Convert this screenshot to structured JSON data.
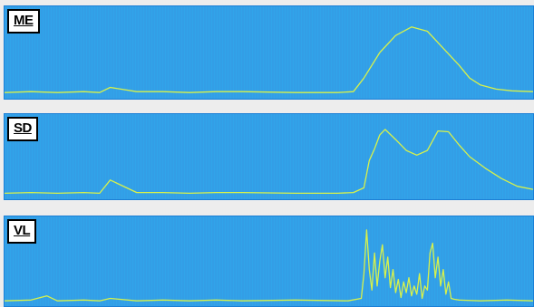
{
  "chart_data": [
    {
      "type": "line",
      "title": "ME",
      "series": [
        {
          "x": [
            0,
            0.05,
            0.1,
            0.15,
            0.18,
            0.2,
            0.25,
            0.3,
            0.35,
            0.4,
            0.45,
            0.55,
            0.63,
            0.66,
            0.68,
            0.71,
            0.74,
            0.77,
            0.8,
            0.83,
            0.86,
            0.88,
            0.9,
            0.93,
            0.96,
            1.0
          ],
          "y": [
            0.03,
            0.04,
            0.03,
            0.04,
            0.03,
            0.09,
            0.04,
            0.04,
            0.03,
            0.04,
            0.04,
            0.03,
            0.03,
            0.04,
            0.2,
            0.5,
            0.7,
            0.8,
            0.75,
            0.55,
            0.35,
            0.2,
            0.12,
            0.07,
            0.05,
            0.04
          ]
        }
      ],
      "ylim": [
        0,
        1
      ],
      "colors": {
        "background": "#31a4ea",
        "trace": "#d8f24a",
        "grid": "#3a8fdc"
      }
    },
    {
      "type": "line",
      "title": "SD",
      "series": [
        {
          "x": [
            0,
            0.05,
            0.1,
            0.15,
            0.18,
            0.2,
            0.25,
            0.3,
            0.35,
            0.4,
            0.45,
            0.55,
            0.63,
            0.66,
            0.68,
            0.69,
            0.7,
            0.71,
            0.72,
            0.74,
            0.76,
            0.78,
            0.8,
            0.82,
            0.84,
            0.86,
            0.88,
            0.91,
            0.94,
            0.97,
            1.0
          ],
          "y": [
            0.03,
            0.04,
            0.03,
            0.04,
            0.03,
            0.2,
            0.04,
            0.04,
            0.03,
            0.04,
            0.04,
            0.03,
            0.03,
            0.04,
            0.1,
            0.45,
            0.6,
            0.78,
            0.85,
            0.72,
            0.58,
            0.52,
            0.58,
            0.83,
            0.82,
            0.65,
            0.5,
            0.35,
            0.22,
            0.12,
            0.08
          ]
        }
      ],
      "ylim": [
        0,
        1
      ],
      "colors": {
        "background": "#31a4ea",
        "trace": "#d8f24a",
        "grid": "#3a8fdc"
      }
    },
    {
      "type": "line",
      "title": "VL",
      "series": [
        {
          "x": [
            0,
            0.05,
            0.08,
            0.1,
            0.15,
            0.18,
            0.2,
            0.25,
            0.3,
            0.35,
            0.4,
            0.45,
            0.55,
            0.65,
            0.675,
            0.68,
            0.685,
            0.69,
            0.695,
            0.7,
            0.705,
            0.71,
            0.715,
            0.72,
            0.725,
            0.73,
            0.735,
            0.74,
            0.745,
            0.75,
            0.755,
            0.76,
            0.765,
            0.77,
            0.775,
            0.78,
            0.785,
            0.79,
            0.795,
            0.8,
            0.805,
            0.81,
            0.815,
            0.82,
            0.825,
            0.83,
            0.835,
            0.84,
            0.845,
            0.85,
            0.86,
            0.9,
            0.95,
            1.0
          ],
          "y": [
            0.02,
            0.03,
            0.08,
            0.02,
            0.03,
            0.02,
            0.05,
            0.02,
            0.03,
            0.02,
            0.03,
            0.02,
            0.03,
            0.02,
            0.05,
            0.35,
            0.88,
            0.4,
            0.15,
            0.6,
            0.2,
            0.5,
            0.7,
            0.3,
            0.55,
            0.18,
            0.4,
            0.12,
            0.28,
            0.06,
            0.25,
            0.12,
            0.3,
            0.08,
            0.2,
            0.1,
            0.35,
            0.05,
            0.2,
            0.15,
            0.6,
            0.72,
            0.3,
            0.55,
            0.2,
            0.4,
            0.1,
            0.25,
            0.05,
            0.04,
            0.03,
            0.02,
            0.03,
            0.02
          ]
        }
      ],
      "ylim": [
        0,
        1
      ],
      "colors": {
        "background": "#31a4ea",
        "trace": "#d8f24a",
        "grid": "#3a8fdc"
      }
    }
  ]
}
